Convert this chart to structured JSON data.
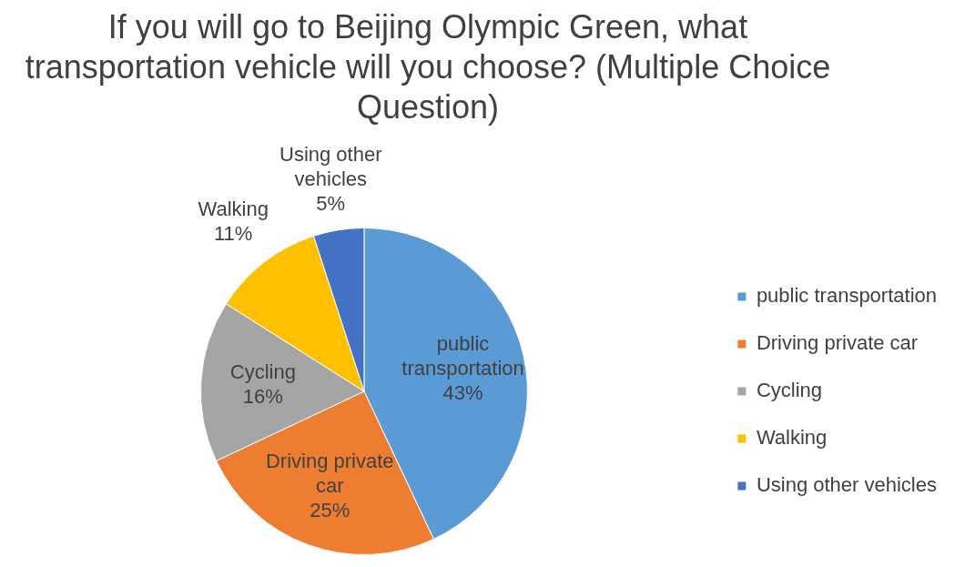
{
  "chart_data": {
    "type": "pie",
    "title": "If you will go to Beijing Olympic Green, what transportation vehicle will you choose? (Multiple Choice Question)",
    "categories": [
      "public transportation",
      "Driving private car",
      "Cycling",
      "Walking",
      "Using other vehicles"
    ],
    "values": [
      43,
      25,
      16,
      11,
      5
    ],
    "colors": [
      "#5b9bd5",
      "#ed7d31",
      "#a5a5a5",
      "#ffc000",
      "#4472c4"
    ],
    "value_labels": [
      "43%",
      "25%",
      "16%",
      "11%",
      "5%"
    ],
    "legend": "right"
  }
}
